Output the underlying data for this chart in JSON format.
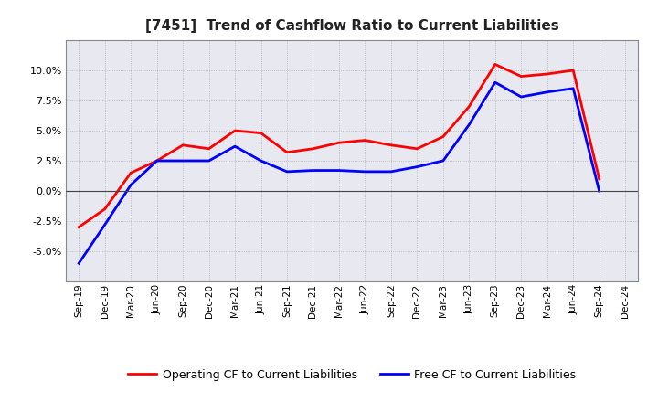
{
  "title": "[7451]  Trend of Cashflow Ratio to Current Liabilities",
  "x_labels": [
    "Sep-19",
    "Dec-19",
    "Mar-20",
    "Jun-20",
    "Sep-20",
    "Dec-20",
    "Mar-21",
    "Jun-21",
    "Sep-21",
    "Dec-21",
    "Mar-22",
    "Jun-22",
    "Sep-22",
    "Dec-22",
    "Mar-23",
    "Jun-23",
    "Sep-23",
    "Dec-23",
    "Mar-24",
    "Jun-24",
    "Sep-24",
    "Dec-24"
  ],
  "operating_cf": [
    -3.0,
    -1.5,
    1.5,
    2.5,
    3.8,
    3.5,
    5.0,
    4.8,
    3.2,
    3.5,
    4.0,
    4.2,
    3.8,
    3.5,
    4.5,
    7.0,
    10.5,
    9.5,
    9.7,
    10.0,
    1.0,
    null
  ],
  "free_cf": [
    -6.0,
    -2.8,
    0.5,
    2.5,
    2.5,
    2.5,
    3.7,
    2.5,
    1.6,
    1.7,
    1.7,
    1.6,
    1.6,
    2.0,
    2.5,
    5.5,
    9.0,
    7.8,
    8.2,
    8.5,
    0.0,
    null
  ],
  "ylim": [
    -7.5,
    12.5
  ],
  "yticks": [
    -5.0,
    -2.5,
    0.0,
    2.5,
    5.0,
    7.5,
    10.0
  ],
  "operating_color": "#FF0000",
  "free_color": "#0000FF",
  "background_color": "#FFFFFF",
  "plot_bg_color": "#E8E8F0",
  "grid_color": "#AAAAAA",
  "legend_op": "Operating CF to Current Liabilities",
  "legend_free": "Free CF to Current Liabilities",
  "title_fontsize": 11,
  "title_color": "#222222",
  "line_width": 2.0
}
